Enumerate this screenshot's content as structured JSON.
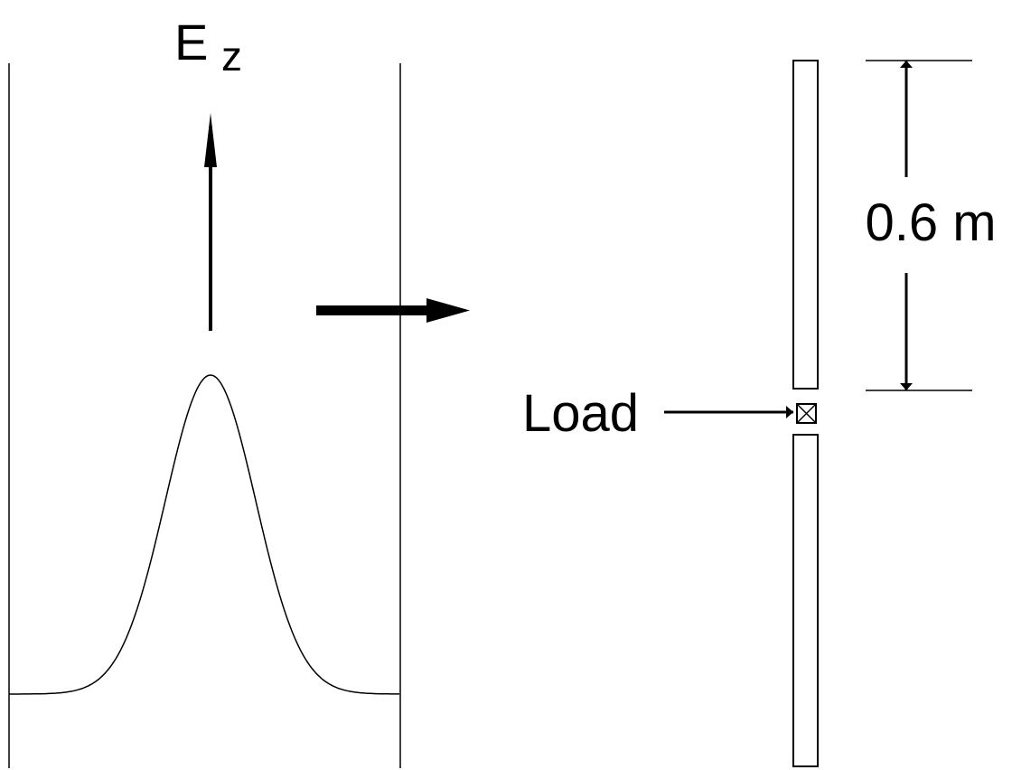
{
  "field_label": {
    "main": "E",
    "subscript": "z"
  },
  "load_label": "Load",
  "dimension_label": "0.6 m"
}
